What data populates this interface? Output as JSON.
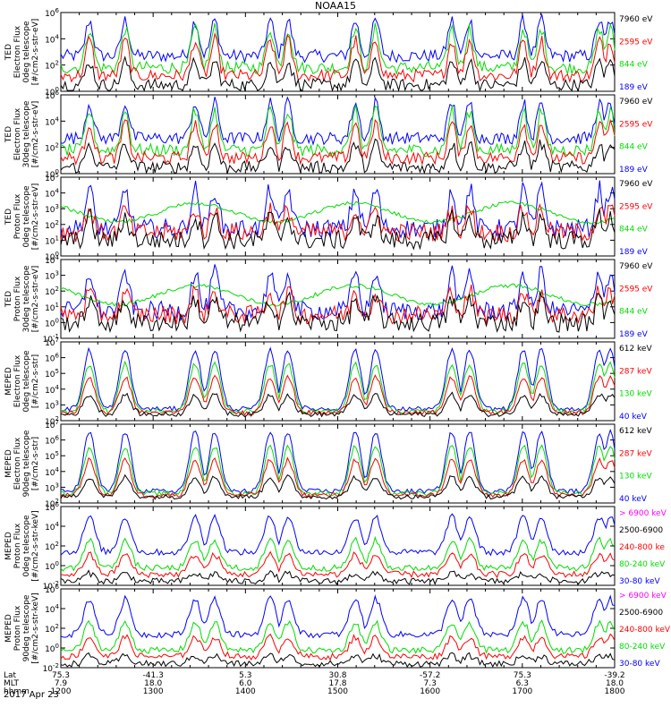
{
  "title": "NOAA15",
  "date_label": "2017 Apr 23",
  "colors": {
    "black": "#000000",
    "red": "#ff0000",
    "green": "#00dd00",
    "blue": "#0000ff",
    "magenta": "#ff00ff"
  },
  "chart_data": [
    {
      "type": "line",
      "instrument": "TED",
      "ylabel_lines": [
        "TED",
        "Electron Flux",
        "0deg telescope",
        "[#/cm2-s-str-eV]"
      ],
      "yscale": "log",
      "ylim": [
        1,
        1000000
      ],
      "ytick_labels": [
        "10^0",
        "10^2",
        "10^4",
        "10^6"
      ],
      "series": [
        {
          "name": "7960 eV",
          "color": "#000000"
        },
        {
          "name": "2595 eV",
          "color": "#ff0000"
        },
        {
          "name": "844 eV",
          "color": "#00dd00"
        },
        {
          "name": "189 eV",
          "color": "#0000ff"
        }
      ]
    },
    {
      "type": "line",
      "instrument": "TED",
      "ylabel_lines": [
        "TED",
        "Electron Flux",
        "30deg telescope",
        "[#/cm2-s-str-eV]"
      ],
      "yscale": "log",
      "ylim": [
        1,
        1000000
      ],
      "ytick_labels": [
        "10^0",
        "10^2",
        "10^4",
        "10^6"
      ],
      "series": [
        {
          "name": "7960 eV",
          "color": "#000000"
        },
        {
          "name": "2595 eV",
          "color": "#ff0000"
        },
        {
          "name": "844 eV",
          "color": "#00dd00"
        },
        {
          "name": "189 eV",
          "color": "#0000ff"
        }
      ]
    },
    {
      "type": "line",
      "instrument": "TED",
      "ylabel_lines": [
        "TED",
        "Proton Flux",
        "0deg telescope",
        "[#/cm2-s-str-eV]"
      ],
      "yscale": "log",
      "ylim": [
        1,
        100000
      ],
      "ytick_labels": [
        "10^0",
        "10^1",
        "10^2",
        "10^3",
        "10^4",
        "10^5"
      ],
      "series": [
        {
          "name": "7960 eV",
          "color": "#000000"
        },
        {
          "name": "2595 eV",
          "color": "#ff0000"
        },
        {
          "name": "844 eV",
          "color": "#00dd00"
        },
        {
          "name": "189 eV",
          "color": "#0000ff"
        }
      ]
    },
    {
      "type": "line",
      "instrument": "TED",
      "ylabel_lines": [
        "TED",
        "Proton Flux",
        "30deg telescope",
        "[#/cm2-s-str-eV]"
      ],
      "yscale": "log",
      "ylim": [
        0.1,
        10000
      ],
      "ytick_labels": [
        "10^-1",
        "10^0",
        "10^1",
        "10^2",
        "10^3",
        "10^4"
      ],
      "series": [
        {
          "name": "7960 eV",
          "color": "#000000"
        },
        {
          "name": "2595 eV",
          "color": "#ff0000"
        },
        {
          "name": "844 eV",
          "color": "#00dd00"
        },
        {
          "name": "189 eV",
          "color": "#0000ff"
        }
      ]
    },
    {
      "type": "line",
      "instrument": "MEPED",
      "ylabel_lines": [
        "MEPED",
        "Electron Flux",
        "0deg telescope",
        "[#/cm2-s-str]"
      ],
      "yscale": "log",
      "ylim": [
        100,
        10000000
      ],
      "ytick_labels": [
        "10^2",
        "10^3",
        "10^4",
        "10^5",
        "10^6",
        "10^7"
      ],
      "series": [
        {
          "name": "612 keV",
          "color": "#000000"
        },
        {
          "name": "287 keV",
          "color": "#ff0000"
        },
        {
          "name": "130 keV",
          "color": "#00dd00"
        },
        {
          "name": "40 keV",
          "color": "#0000ff"
        }
      ]
    },
    {
      "type": "line",
      "instrument": "MEPED",
      "ylabel_lines": [
        "MEPED",
        "Electron Flux",
        "90deg telescope",
        "[#/cm2-s-str]"
      ],
      "yscale": "log",
      "ylim": [
        100,
        10000000
      ],
      "ytick_labels": [
        "10^2",
        "10^3",
        "10^4",
        "10^5",
        "10^6",
        "10^7"
      ],
      "series": [
        {
          "name": "612 keV",
          "color": "#000000"
        },
        {
          "name": "287 keV",
          "color": "#ff0000"
        },
        {
          "name": "130 keV",
          "color": "#00dd00"
        },
        {
          "name": "40 keV",
          "color": "#0000ff"
        }
      ]
    },
    {
      "type": "line",
      "instrument": "MEPED",
      "ylabel_lines": [
        "MEPED",
        "Proton Flux",
        "0deg telescope",
        "[#/cm2-s-str-keV]"
      ],
      "yscale": "log",
      "ylim": [
        0.01,
        1000000
      ],
      "ytick_labels": [
        "10^-2",
        "10^0",
        "10^2",
        "10^4",
        "10^6"
      ],
      "series": [
        {
          "name": "> 6900 keV",
          "color": "#ff00ff"
        },
        {
          "name": "2500-6900",
          "color": "#000000"
        },
        {
          "name": "240-800 ke",
          "color": "#ff0000"
        },
        {
          "name": "80-240 keV",
          "color": "#00dd00"
        },
        {
          "name": "30-80 keV",
          "color": "#0000ff"
        }
      ]
    },
    {
      "type": "line",
      "instrument": "MEPED",
      "ylabel_lines": [
        "MEPED",
        "Proton Flux",
        "90deg telescope",
        "[#/cm2-s-str-keV]"
      ],
      "yscale": "log",
      "ylim": [
        0.01,
        1000000
      ],
      "ytick_labels": [
        "10^-2",
        "10^0",
        "10^2",
        "10^4",
        "10^6"
      ],
      "series": [
        {
          "name": "> 6900 keV",
          "color": "#ff00ff"
        },
        {
          "name": "2500-6900",
          "color": "#000000"
        },
        {
          "name": "240-800 keV",
          "color": "#ff0000"
        },
        {
          "name": "80-240 keV",
          "color": "#00dd00"
        },
        {
          "name": "30-80 keV",
          "color": "#0000ff"
        }
      ]
    }
  ],
  "x_axis": {
    "row_labels": [
      "Lat",
      "MLT",
      "hhmm"
    ],
    "ticks": [
      {
        "lat": "75.3",
        "mlt": "7.9",
        "hhmm": "1200"
      },
      {
        "lat": "-41.3",
        "mlt": "18.0",
        "hhmm": "1300"
      },
      {
        "lat": "5.3",
        "mlt": "6.0",
        "hhmm": "1400"
      },
      {
        "lat": "30.8",
        "mlt": "17.8",
        "hhmm": "1500"
      },
      {
        "lat": "-57.2",
        "mlt": "7.3",
        "hhmm": "1600"
      },
      {
        "lat": "75.3",
        "mlt": "6.3",
        "hhmm": "1700"
      },
      {
        "lat": "-39.2",
        "mlt": "18.0",
        "hhmm": "1800"
      }
    ]
  }
}
